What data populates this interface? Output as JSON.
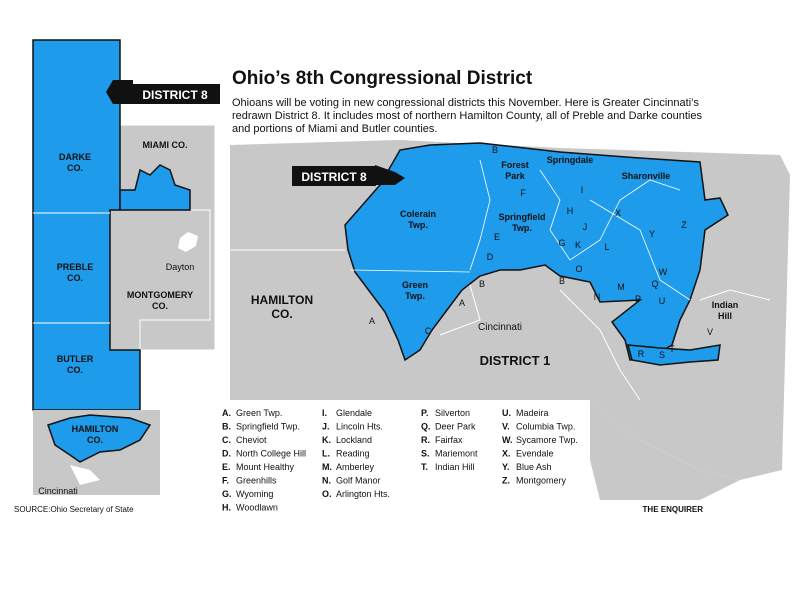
{
  "header": {
    "title": "Ohio’s 8th Congressional District",
    "description": [
      "Ohioans will be voting in new congressional districts this November. Here is Greater Cincinnati’s",
      "redrawn District 8. It includes most of northern Hamilton County, all of Preble and Darke counties",
      "and portions of Miami and Butler counties."
    ]
  },
  "left_map": {
    "district_label": "DISTRICT 8",
    "darke": [
      "DARKE",
      "CO."
    ],
    "miami": "MIAMI CO.",
    "preble": [
      "PREBLE",
      "CO."
    ],
    "dayton": "Dayton",
    "montgomery": [
      "MONTGOMERY",
      "CO."
    ],
    "butler": [
      "BUTLER",
      "CO."
    ],
    "hamilton": [
      "HAMILTON",
      "CO."
    ],
    "cincinnati": "Cincinnati"
  },
  "main_map": {
    "district8": "DISTRICT 8",
    "district1": "DISTRICT 1",
    "hamilton": [
      "HAMILTON",
      "CO."
    ],
    "colerain": [
      "Colerain",
      "Twp."
    ],
    "green": [
      "Green",
      "Twp."
    ],
    "cincinnati": "Cincinnati",
    "forest_park": [
      "Forest",
      "Park"
    ],
    "springdale": "Springdale",
    "sharonville": "Sharonville",
    "springfield": [
      "Springfield",
      "Twp."
    ],
    "indian_hill": [
      "Indian",
      "Hill"
    ],
    "letters": [
      "B",
      "F",
      "I",
      "H",
      "X",
      "E",
      "J",
      "G",
      "K",
      "L",
      "Y",
      "Z",
      "W",
      "D",
      "B",
      "O",
      "B",
      "Q",
      "M",
      "N",
      "P",
      "U",
      "A",
      "C",
      "A",
      "V",
      "R",
      "S",
      "T"
    ]
  },
  "legend": [
    {
      "key": "A.",
      "name": "Green Twp."
    },
    {
      "key": "B.",
      "name": "Springfield Twp."
    },
    {
      "key": "C.",
      "name": "Cheviot"
    },
    {
      "key": "D.",
      "name": "North College Hill"
    },
    {
      "key": "E.",
      "name": "Mount Healthy"
    },
    {
      "key": "F.",
      "name": "Greenhills"
    },
    {
      "key": "G.",
      "name": "Wyoming"
    },
    {
      "key": "H.",
      "name": "Woodlawn"
    },
    {
      "key": "I.",
      "name": "Glendale"
    },
    {
      "key": "J.",
      "name": "Lincoln Hts."
    },
    {
      "key": "K.",
      "name": "Lockland"
    },
    {
      "key": "L.",
      "name": "Reading"
    },
    {
      "key": "M.",
      "name": "Amberley"
    },
    {
      "key": "N.",
      "name": "Golf Manor"
    },
    {
      "key": "O.",
      "name": "Arlington Hts."
    },
    {
      "key": "P.",
      "name": "Silverton"
    },
    {
      "key": "Q.",
      "name": "Deer Park"
    },
    {
      "key": "R.",
      "name": "Fairfax"
    },
    {
      "key": "S.",
      "name": "Mariemont"
    },
    {
      "key": "T.",
      "name": "Indian Hill"
    },
    {
      "key": "U.",
      "name": "Madeira"
    },
    {
      "key": "V.",
      "name": "Columbia Twp."
    },
    {
      "key": "W.",
      "name": "Sycamore Twp."
    },
    {
      "key": "X.",
      "name": "Evendale"
    },
    {
      "key": "Y.",
      "name": "Blue Ash"
    },
    {
      "key": "Z.",
      "name": "Montgomery"
    }
  ],
  "source": "SOURCE:Ohio Secretary of State",
  "credit": "THE ENQUIRER"
}
